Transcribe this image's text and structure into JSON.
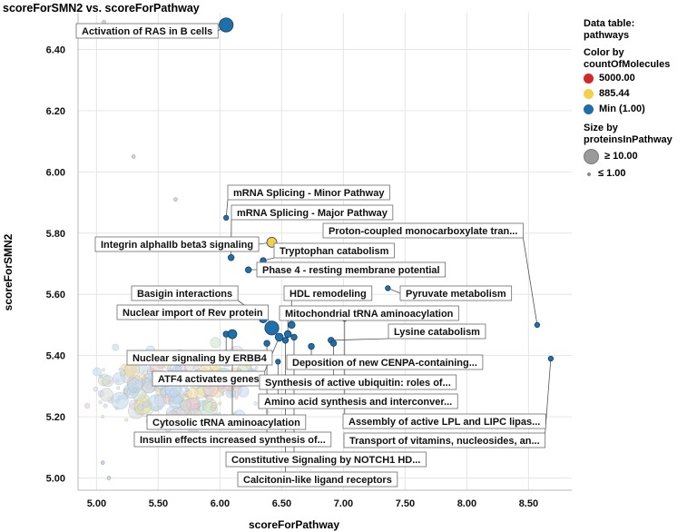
{
  "chart_data": {
    "type": "scatter",
    "title": "scoreForSMN2 vs. scoreForPathway",
    "xlabel": "scoreForPathway",
    "ylabel": "scoreForSMN2",
    "xlim": [
      4.85,
      8.85
    ],
    "ylim": [
      4.96,
      6.52
    ],
    "xticks": [
      "5.00",
      "5.50",
      "6.00",
      "6.50",
      "7.00",
      "7.50",
      "8.00",
      "8.50"
    ],
    "yticks": [
      "5.00",
      "5.20",
      "5.40",
      "5.60",
      "5.80",
      "6.00",
      "6.20",
      "6.40"
    ],
    "labeled_points": [
      {
        "label": "Activation of RAS in B cells",
        "x": 6.05,
        "y": 6.48,
        "size": 10,
        "color": "#1f6fa8"
      },
      {
        "label": "mRNA Splicing - Minor Pathway",
        "x": 6.05,
        "y": 5.85,
        "size": 1,
        "color": "#1f6fa8"
      },
      {
        "label": "mRNA Splicing - Major Pathway",
        "x": 6.09,
        "y": 5.72,
        "size": 2,
        "color": "#1f6fa8"
      },
      {
        "label": "Integrin alphaIIb beta3 signaling",
        "x": 6.42,
        "y": 5.77,
        "size": 6,
        "color": "#f2d04a"
      },
      {
        "label": "Tryptophan catabolism",
        "x": 6.35,
        "y": 5.71,
        "size": 2,
        "color": "#1f6fa8"
      },
      {
        "label": "Phase 4 - resting membrane potential",
        "x": 6.23,
        "y": 5.68,
        "size": 2,
        "color": "#1f6fa8"
      },
      {
        "label": "Proton-coupled  monocarboxylate tran...",
        "x": 8.57,
        "y": 5.5,
        "size": 1,
        "color": "#1f6fa8"
      },
      {
        "label": "Basigin interactions",
        "x": 6.35,
        "y": 5.52,
        "size": 4,
        "color": "#1f6fa8"
      },
      {
        "label": "HDL remodeling",
        "x": 6.58,
        "y": 5.5,
        "size": 3,
        "color": "#1f6fa8"
      },
      {
        "label": "Pyruvate metabolism",
        "x": 7.36,
        "y": 5.62,
        "size": 1,
        "color": "#1f6fa8"
      },
      {
        "label": "Nuclear import of Rev protein",
        "x": 6.42,
        "y": 5.49,
        "size": 10,
        "color": "#1f6fa8"
      },
      {
        "label": "Mitochondrial tRNA aminoacylation",
        "x": 6.55,
        "y": 5.47,
        "size": 3,
        "color": "#1f6fa8"
      },
      {
        "label": "Lysine catabolism",
        "x": 6.9,
        "y": 5.45,
        "size": 2,
        "color": "#1f6fa8"
      },
      {
        "label": "Nuclear signaling by ERBB4",
        "x": 6.05,
        "y": 5.47,
        "size": 2,
        "color": "#1f6fa8"
      },
      {
        "label": "Deposition of new CENPA-containing...",
        "x": 6.74,
        "y": 5.43,
        "size": 2,
        "color": "#1f6fa8"
      },
      {
        "label": "ATF4 activates genes",
        "x": 6.48,
        "y": 5.46,
        "size": 4,
        "color": "#1f6fa8"
      },
      {
        "label": "Synthesis of active ubiquitin: roles of...",
        "x": 6.92,
        "y": 5.44,
        "size": 2,
        "color": "#1f6fa8"
      },
      {
        "label": "Amino acid synthesis and interconver...",
        "x": 6.47,
        "y": 5.38,
        "size": 1,
        "color": "#1f6fa8"
      },
      {
        "label": "Cytosolic tRNA aminoacylation",
        "x": 6.1,
        "y": 5.47,
        "size": 5,
        "color": "#1f6fa8"
      },
      {
        "label": "Assembly of active LPL and LIPC lipas...",
        "x": 7.01,
        "y": 5.52,
        "size": 1,
        "color": "#1f6fa8"
      },
      {
        "label": "Insulin effects increased synthesis of...",
        "x": 6.38,
        "y": 5.44,
        "size": 2,
        "color": "#1f6fa8"
      },
      {
        "label": "Transport of vitamins, nucleosides, an...",
        "x": 8.68,
        "y": 5.39,
        "size": 1,
        "color": "#1f6fa8"
      },
      {
        "label": "Constitutive Signaling by NOTCH1 HD...",
        "x": 6.6,
        "y": 5.46,
        "size": 2,
        "color": "#1f6fa8"
      },
      {
        "label": "Calcitonin-like ligand receptors",
        "x": 6.53,
        "y": 5.45,
        "size": 2,
        "color": "#1f6fa8"
      }
    ],
    "background_points_note": "dense cloud of faint small points (approx. n=230) centered near x 5.0–6.8, y 5.1–5.5"
  },
  "legend": {
    "header_line1": "Data table:",
    "header_line2": "pathways",
    "color_by_line1": "Color by",
    "color_by_line2": "countOfMolecules",
    "color_items": [
      {
        "label": "5000.00",
        "color": "#d62728"
      },
      {
        "label": "885.44",
        "color": "#f2d04a"
      },
      {
        "label": "Min (1.00)",
        "color": "#1f6fa8"
      }
    ],
    "size_by_line1": "Size by",
    "size_by_line2": "proteinsInPathway",
    "size_items": [
      {
        "label": "≥ 10.00",
        "size": "large"
      },
      {
        "label": "≤ 1.00",
        "size": "small"
      }
    ]
  },
  "colors": {
    "grid": "#e6e6e6",
    "axis": "#b8b8b8",
    "leader": "#555555",
    "faint_palette": [
      "#bcd7ea",
      "#f0dfa0",
      "#e8c8c8",
      "#cfe2c4",
      "#d8d8d8",
      "#c7d8ef"
    ]
  }
}
